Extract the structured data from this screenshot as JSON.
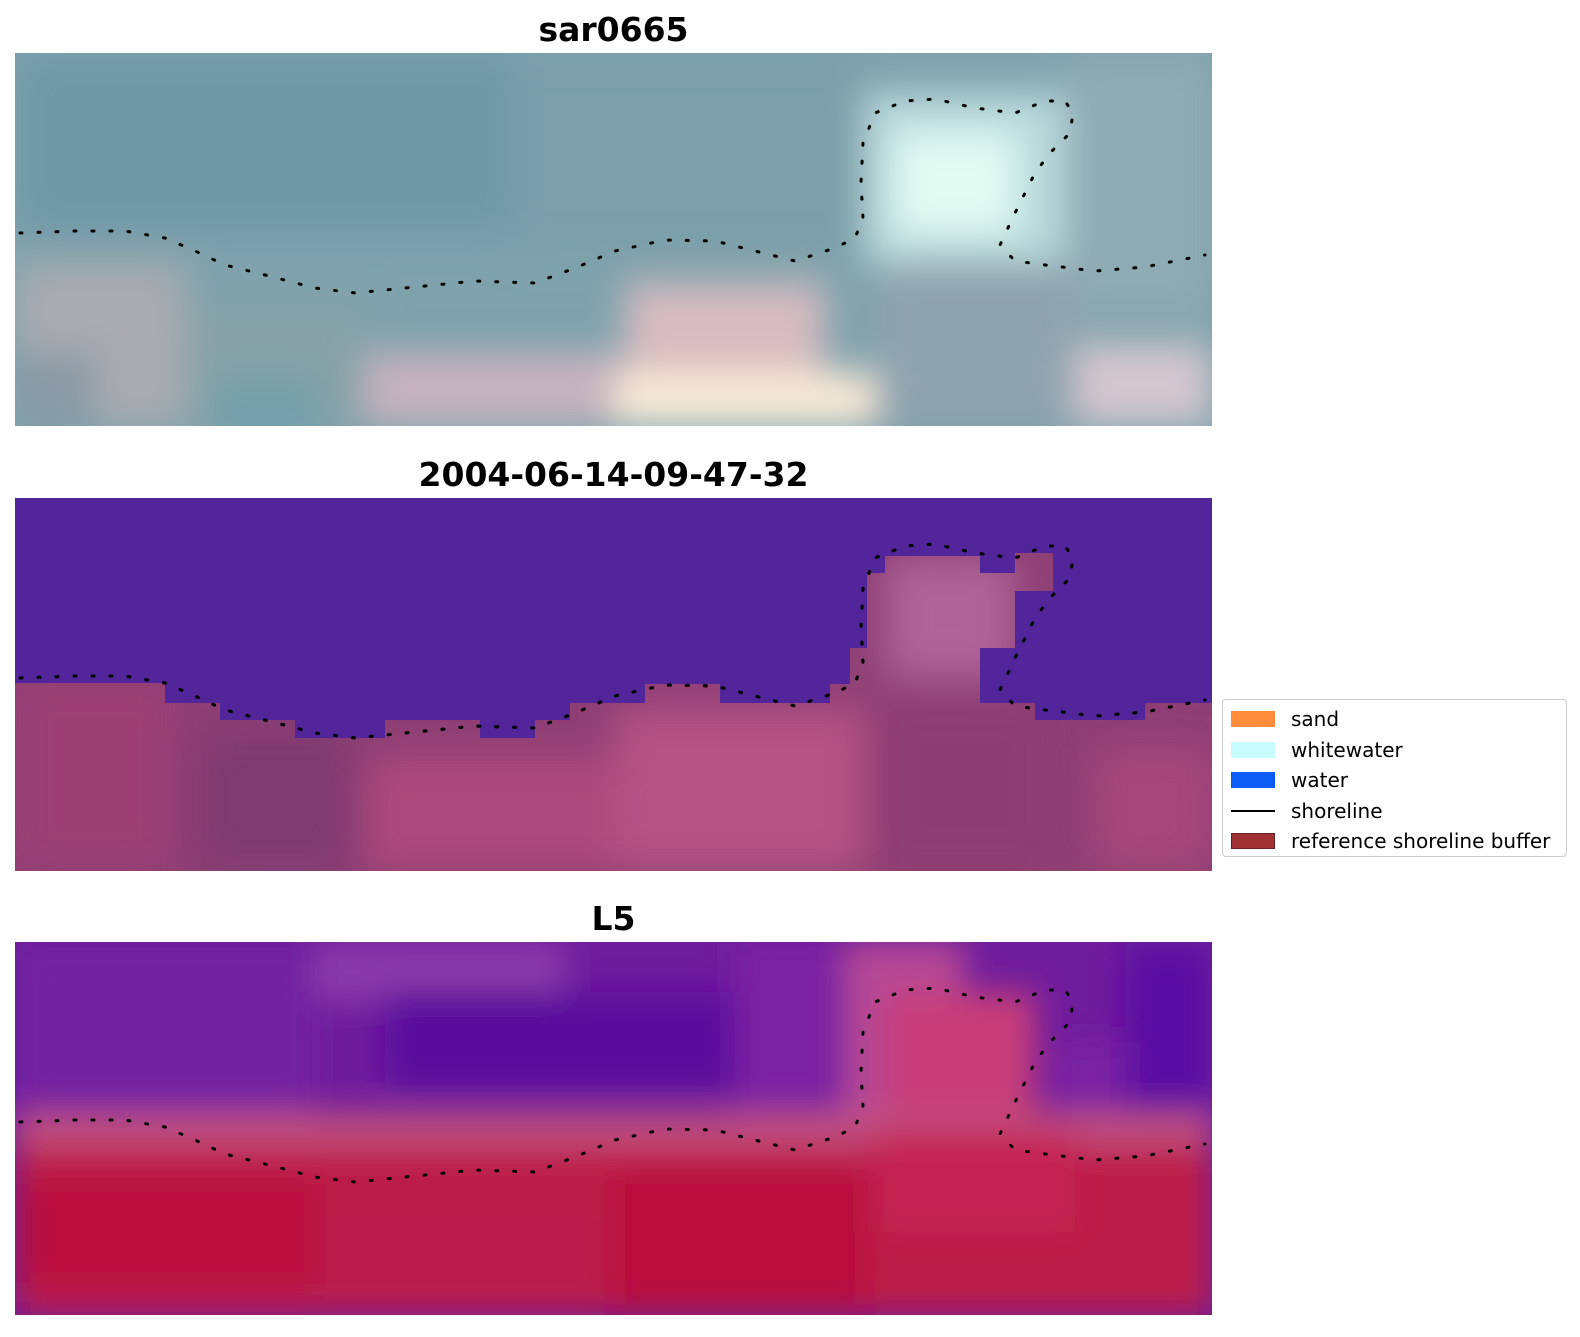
{
  "panels": [
    {
      "title": "sar0665"
    },
    {
      "title": "2004-06-14-09-47-32"
    },
    {
      "title": "L5"
    }
  ],
  "legend": {
    "items": [
      {
        "label": "sand",
        "color": "#ff8c3a",
        "kind": "patch"
      },
      {
        "label": "whitewater",
        "color": "#c8fcfc",
        "kind": "patch"
      },
      {
        "label": "water",
        "color": "#0a5cf5",
        "kind": "patch"
      },
      {
        "label": "shoreline",
        "color": "#000000",
        "kind": "line"
      },
      {
        "label": "reference shoreline buffer",
        "color": "#a03236",
        "kind": "patch"
      }
    ]
  }
}
